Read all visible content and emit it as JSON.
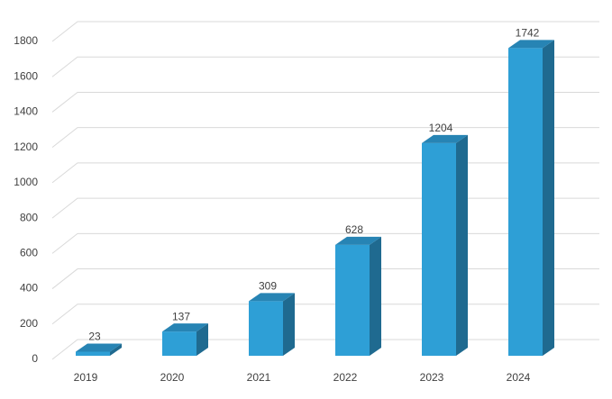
{
  "chart_data": {
    "type": "bar3d",
    "categories": [
      "2019",
      "2020",
      "2021",
      "2022",
      "2023",
      "2024"
    ],
    "values": [
      23,
      137,
      309,
      628,
      1204,
      1742
    ],
    "color": "#2e9fd6",
    "ylim": [
      0,
      1800
    ],
    "yticks": [
      0,
      200,
      400,
      600,
      800,
      1000,
      1200,
      1400,
      1600,
      1800
    ],
    "grid": true
  }
}
